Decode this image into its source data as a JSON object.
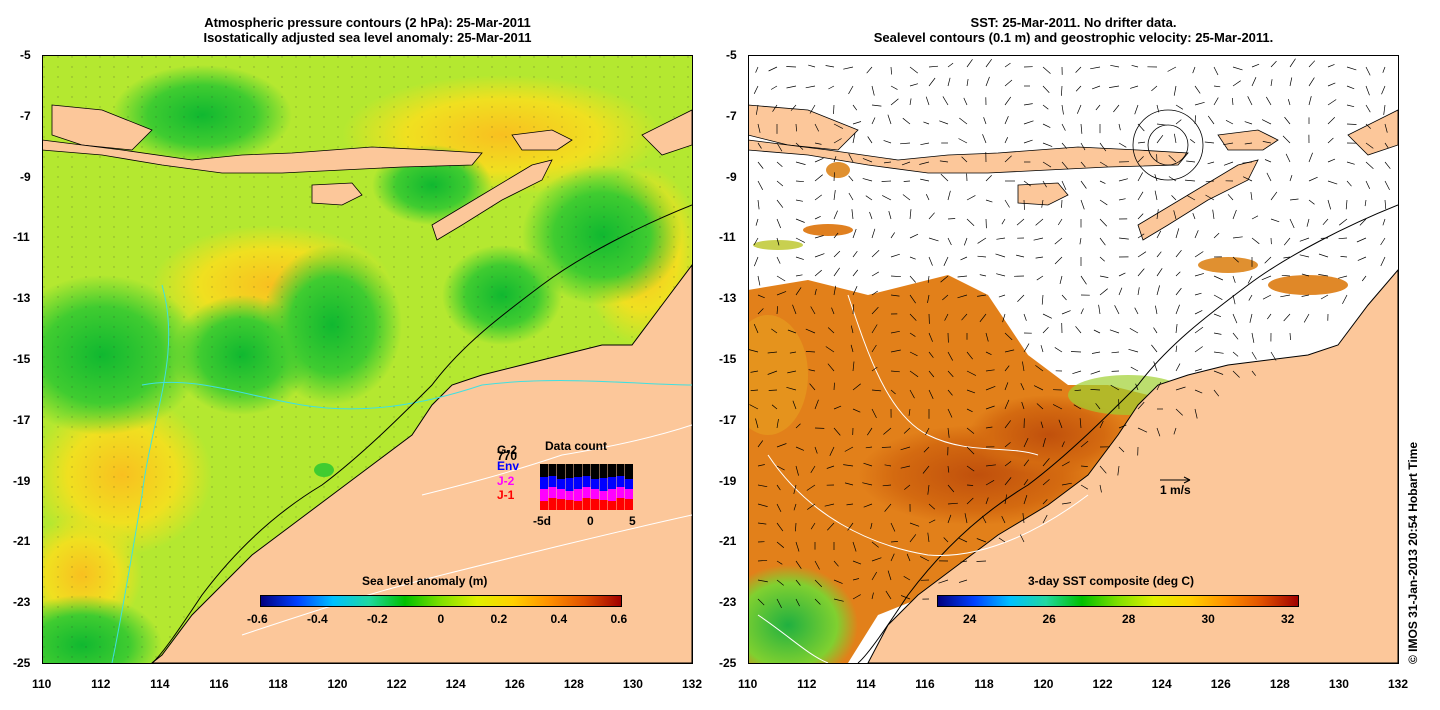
{
  "left_panel": {
    "title_line1": "Atmospheric pressure contours (2 hPa): 25-Mar-2011",
    "title_line2": "Isostatically adjusted sea level anomaly: 25-Mar-2011",
    "colorbar": {
      "label": "Sea level anomaly (m)",
      "ticks": [
        "-0.6",
        "-0.4",
        "-0.2",
        "0",
        "0.2",
        "0.4",
        "0.6"
      ],
      "colors": [
        "#00007f",
        "#0040ff",
        "#00c0ff",
        "#20d8a0",
        "#00c000",
        "#80e000",
        "#e0f000",
        "#ffd000",
        "#ff9000",
        "#e05000",
        "#a00000"
      ]
    },
    "inset": {
      "title": "Data count",
      "series": [
        {
          "name": "G-2",
          "color": "#000000"
        },
        {
          "name": "Env",
          "color": "#0000ff"
        },
        {
          "name": "J-2",
          "color": "#ff00ff"
        },
        {
          "name": "J-1",
          "color": "#ff0000"
        }
      ],
      "count_label": "770",
      "x_ticks": [
        "-5d",
        "0",
        "5"
      ]
    }
  },
  "right_panel": {
    "title_line1": "SST: 25-Mar-2011. No drifter data.",
    "title_line2": "Sealevel contours (0.1 m) and geostrophic velocity: 25-Mar-2011.",
    "scale_arrow_label": "1 m/s",
    "colorbar": {
      "label": "3-day SST composite (deg C)",
      "ticks": [
        "24",
        "26",
        "28",
        "30",
        "32"
      ],
      "colors": [
        "#00007f",
        "#0040ff",
        "#00c0ff",
        "#20d8a0",
        "#00c000",
        "#80e000",
        "#e0f000",
        "#ffd000",
        "#ff9000",
        "#e05000",
        "#a00000"
      ]
    }
  },
  "axes": {
    "y_ticks": [
      "-5",
      "-7",
      "-9",
      "-11",
      "-13",
      "-15",
      "-17",
      "-19",
      "-21",
      "-23",
      "-25"
    ],
    "x_ticks": [
      "110",
      "112",
      "114",
      "116",
      "118",
      "120",
      "122",
      "124",
      "126",
      "128",
      "130",
      "132"
    ]
  },
  "colors": {
    "land": "#fcc79a",
    "sla_base": "#b8ec30",
    "sla_low": "#28c828",
    "sla_high": "#f8d018",
    "sst_warm": "#e88a1c",
    "sst_hot": "#c8560e",
    "cloud": "#ffffff"
  },
  "credit": "© IMOS 31-Jan-2013 20:54 Hobart Time"
}
